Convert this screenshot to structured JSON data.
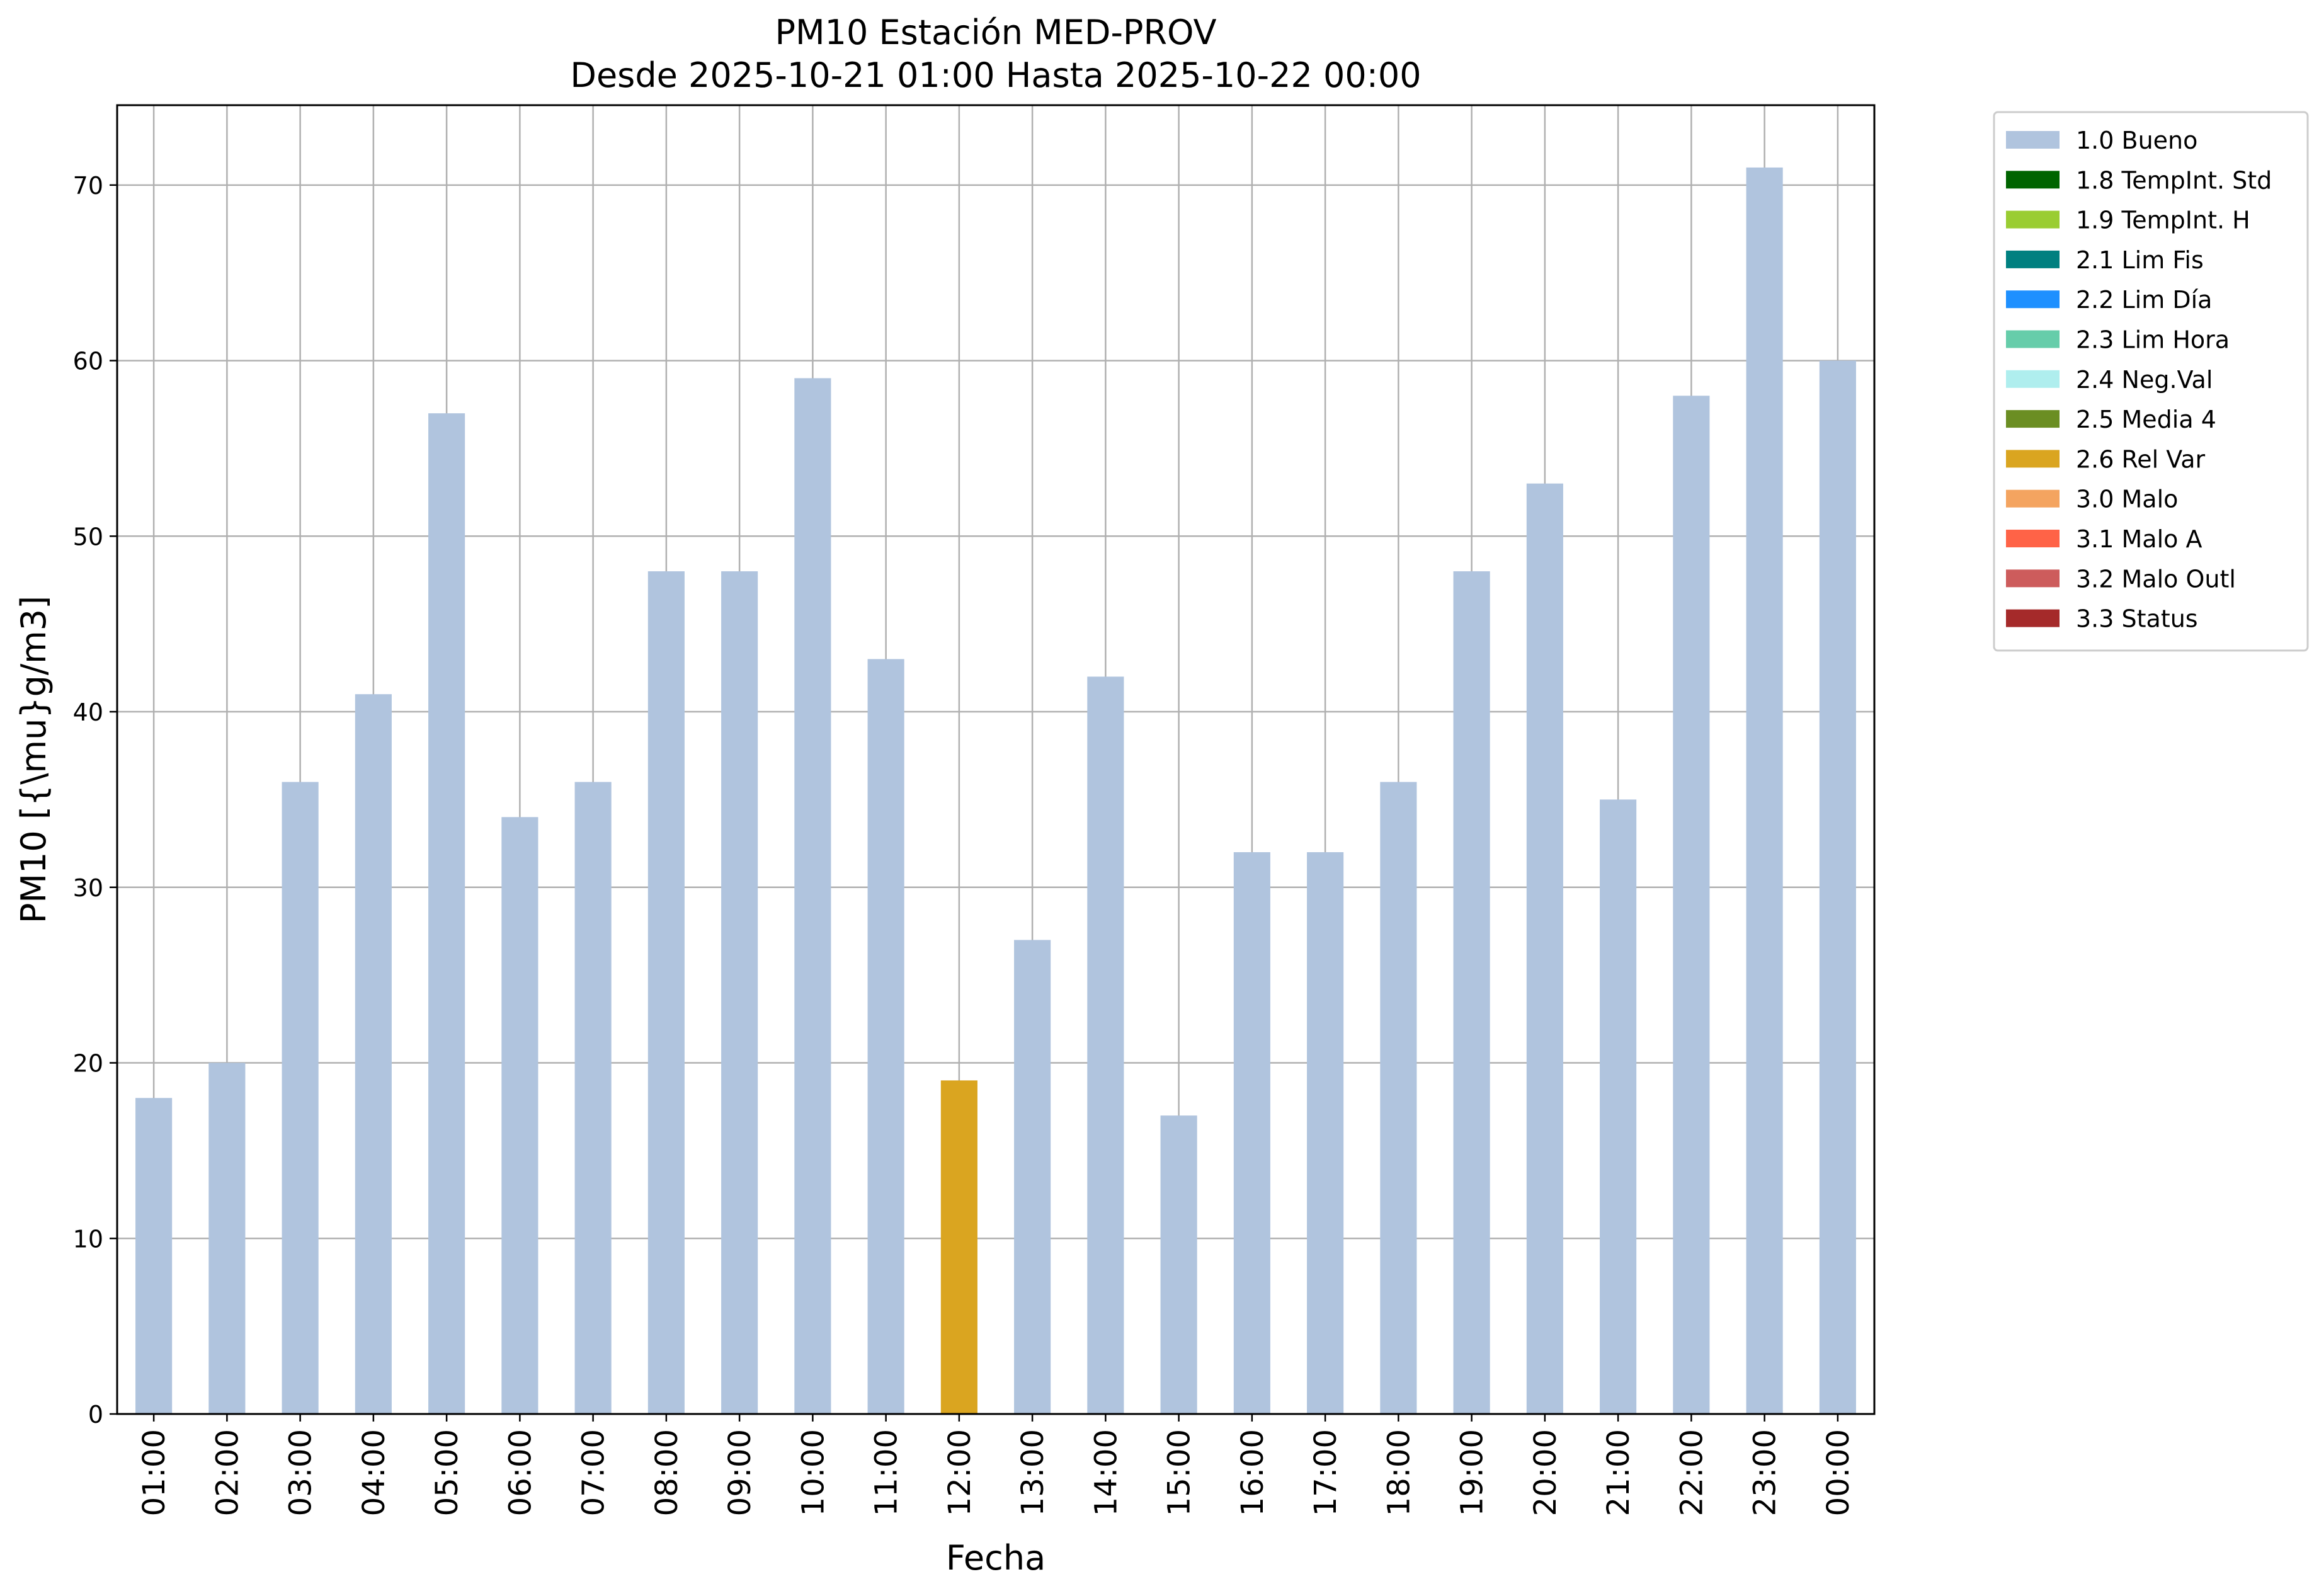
{
  "chart_data": {
    "type": "bar",
    "title": "PM10 Estación MED-PROV",
    "subtitle": "Desde 2025-10-21 01:00 Hasta 2025-10-22 00:00",
    "xlabel": "Fecha",
    "ylabel": "PM10 [{\\mu}g/m3]",
    "ylim": [
      0,
      74.55
    ],
    "yticks": [
      0,
      10,
      20,
      30,
      40,
      50,
      60,
      70
    ],
    "grid": true,
    "legend_placement": "outside top-right",
    "categories": [
      "01:00",
      "02:00",
      "03:00",
      "04:00",
      "05:00",
      "06:00",
      "07:00",
      "08:00",
      "09:00",
      "10:00",
      "11:00",
      "12:00",
      "13:00",
      "14:00",
      "15:00",
      "16:00",
      "17:00",
      "18:00",
      "19:00",
      "20:00",
      "21:00",
      "22:00",
      "23:00",
      "00:00"
    ],
    "values": [
      18,
      20,
      36,
      41,
      57,
      34,
      36,
      48,
      48,
      59,
      43,
      19,
      27,
      42,
      17,
      32,
      32,
      36,
      48,
      53,
      35,
      58,
      71,
      60
    ],
    "flags": [
      "1.0 Bueno",
      "1.0 Bueno",
      "1.0 Bueno",
      "1.0 Bueno",
      "1.0 Bueno",
      "1.0 Bueno",
      "1.0 Bueno",
      "1.0 Bueno",
      "1.0 Bueno",
      "1.0 Bueno",
      "1.0 Bueno",
      "2.6 Rel Var",
      "1.0 Bueno",
      "1.0 Bueno",
      "1.0 Bueno",
      "1.0 Bueno",
      "1.0 Bueno",
      "1.0 Bueno",
      "1.0 Bueno",
      "1.0 Bueno",
      "1.0 Bueno",
      "1.0 Bueno",
      "1.0 Bueno",
      "1.0 Bueno"
    ],
    "legend": [
      {
        "label": "1.0 Bueno",
        "color": "#b0c4de"
      },
      {
        "label": "1.8 TempInt. Std",
        "color": "#006400"
      },
      {
        "label": "1.9 TempInt. H",
        "color": "#9acd32"
      },
      {
        "label": "2.1 Lim Fis",
        "color": "#008080"
      },
      {
        "label": "2.2 Lim Día",
        "color": "#1e90ff"
      },
      {
        "label": "2.3 Lim Hora",
        "color": "#66cdaa"
      },
      {
        "label": "2.4 Neg.Val",
        "color": "#afeeee"
      },
      {
        "label": "2.5 Media 4",
        "color": "#6b8e23"
      },
      {
        "label": "2.6 Rel Var",
        "color": "#daa520"
      },
      {
        "label": "3.0 Malo",
        "color": "#f4a460"
      },
      {
        "label": "3.1 Malo A",
        "color": "#ff6347"
      },
      {
        "label": "3.2 Malo Outl",
        "color": "#cd5c5c"
      },
      {
        "label": "3.3 Status",
        "color": "#a52a2a"
      }
    ]
  }
}
